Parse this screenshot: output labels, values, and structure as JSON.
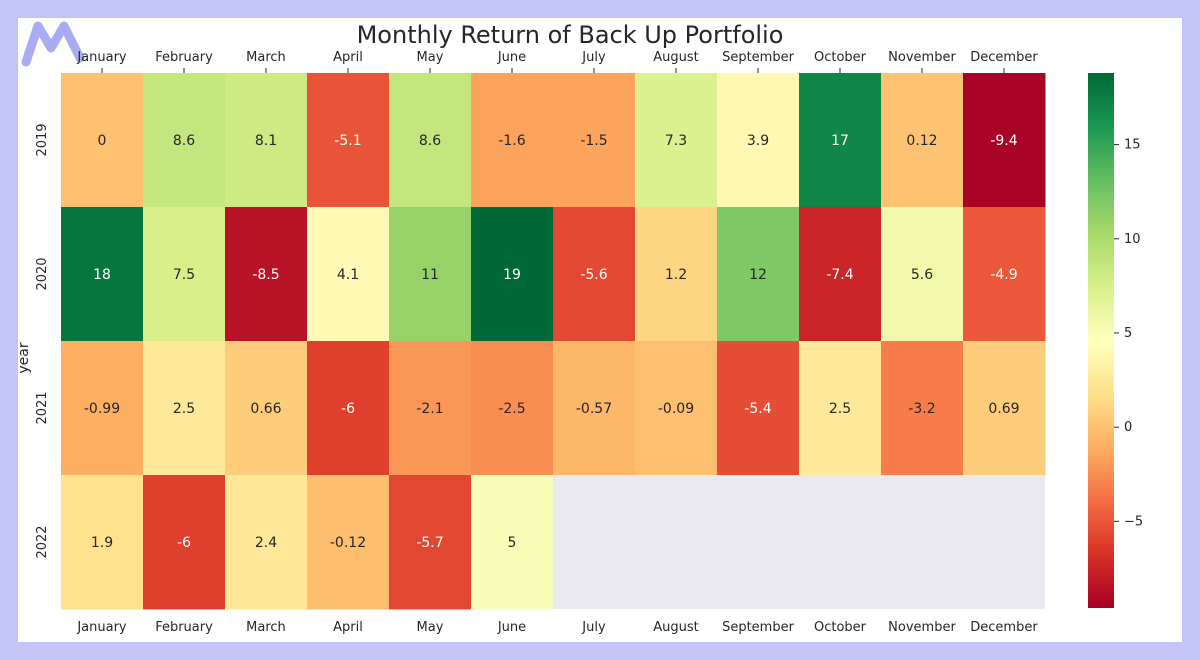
{
  "brand": {
    "logo_icon": "m-logo-icon",
    "color": "#a9acf3"
  },
  "chart_data": {
    "type": "heatmap",
    "title": "Monthly Return of Back Up Portfolio",
    "ylabel": "year",
    "xlabel": "",
    "columns": [
      "January",
      "February",
      "March",
      "April",
      "May",
      "June",
      "July",
      "August",
      "September",
      "October",
      "November",
      "December"
    ],
    "rows": [
      "2019",
      "2020",
      "2021",
      "2022"
    ],
    "values": [
      [
        0,
        8.6,
        8.1,
        -5.1,
        8.6,
        -1.6,
        -1.5,
        7.3,
        3.9,
        17,
        0.12,
        -9.4
      ],
      [
        18,
        7.5,
        -8.5,
        4.1,
        11,
        19,
        -5.6,
        1.2,
        12,
        -7.4,
        5.6,
        -4.9
      ],
      [
        -0.99,
        2.5,
        0.66,
        -6,
        -2.1,
        -2.5,
        -0.57,
        -0.09,
        -5.4,
        2.5,
        -3.2,
        0.69
      ],
      [
        1.9,
        -6,
        2.4,
        -0.12,
        -5.7,
        5,
        null,
        null,
        null,
        null,
        null,
        null
      ]
    ],
    "colorbar": {
      "colormap": "RdYlGn",
      "vmin": -9.6,
      "vmax": 18.8,
      "ticks": [
        -5,
        0,
        5,
        10,
        15
      ],
      "tick_labels": [
        "−5",
        "0",
        "5",
        "10",
        "15"
      ]
    },
    "missing_color": "#e9e9ef",
    "annotated": true
  }
}
